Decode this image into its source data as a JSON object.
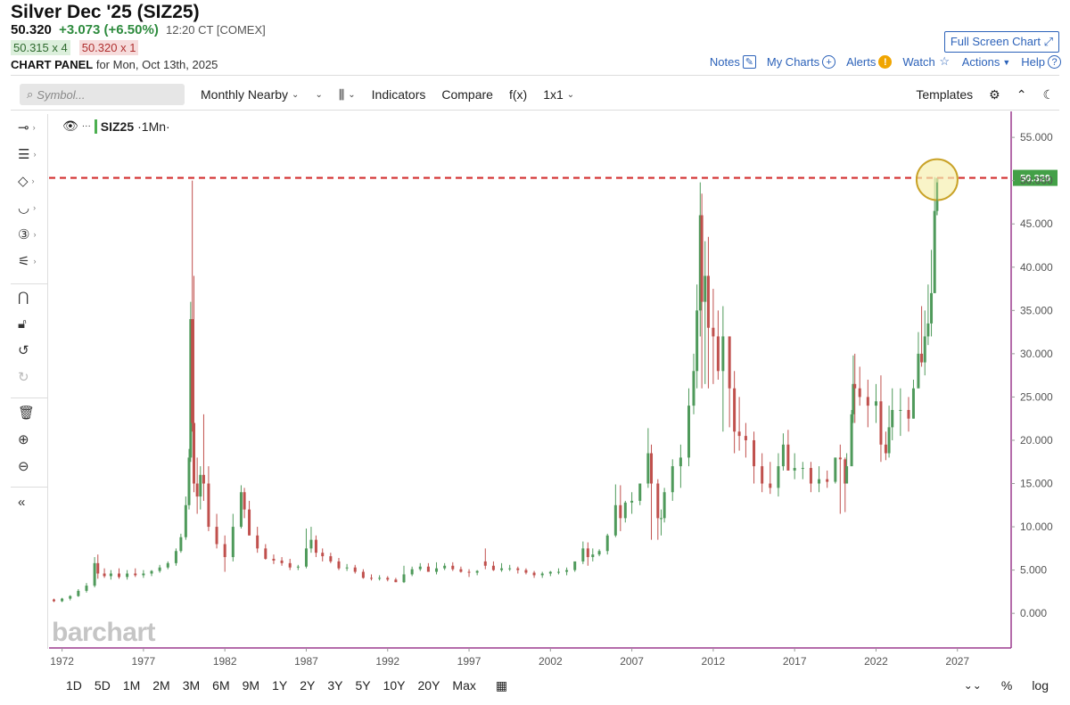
{
  "header": {
    "title": "Silver Dec '25 (SIZ25)",
    "last": "50.320",
    "change": "+3.073 (+6.50%)",
    "time": "12:20 CT [COMEX]",
    "bid": "50.315 x 4",
    "ask": "50.320 x 1",
    "panel_label": "CHART PANEL",
    "panel_date": "for Mon, Oct 13th, 2025"
  },
  "topnav": {
    "fullscreen": "Full Screen Chart",
    "notes": "Notes",
    "mycharts": "My Charts",
    "alerts": "Alerts",
    "watch": "Watch",
    "actions": "Actions",
    "help": "Help"
  },
  "toolbar": {
    "symbol_placeholder": "Symbol...",
    "period": "Monthly Nearby",
    "indicators": "Indicators",
    "compare": "Compare",
    "fx": "f(x)",
    "layout": "1x1",
    "templates": "Templates"
  },
  "legend": {
    "symbol": "SIZ25",
    "interval": "·1Mn·",
    "dots": "···"
  },
  "watermark": "barchart",
  "ranges": [
    "1D",
    "5D",
    "1M",
    "2M",
    "3M",
    "6M",
    "9M",
    "1Y",
    "2Y",
    "3Y",
    "5Y",
    "10Y",
    "20Y",
    "Max"
  ],
  "bottom_right": {
    "percent": "%",
    "log": "log"
  },
  "colors": {
    "up": "#4f9a5b",
    "down": "#c0504d",
    "price_line": "#d32f2f",
    "price_label_bg": "#43a047",
    "axis_border": "#9c3a8e",
    "highlight_circle_fill": "#f6efb0",
    "highlight_circle_stroke": "#c9a227"
  },
  "chart_data": {
    "type": "candlestick",
    "interval": "monthly",
    "last_price": 50.32,
    "last_price_label": "50.320",
    "y_ticks": [
      "55.000",
      "50.000",
      "45.000",
      "40.000",
      "35.000",
      "30.000",
      "25.000",
      "20.000",
      "15.000",
      "10.000",
      "5.000",
      "0.000"
    ],
    "y_tick_values": [
      55,
      50,
      45,
      40,
      35,
      30,
      25,
      20,
      15,
      10,
      5,
      0
    ],
    "ylim": [
      -4,
      58
    ],
    "x_ticks": [
      "1972",
      "1977",
      "1982",
      "1987",
      "1992",
      "1997",
      "2002",
      "2007",
      "2012",
      "2017",
      "2022",
      "2027"
    ],
    "x_tick_values": [
      1972,
      1977,
      1982,
      1987,
      1992,
      1997,
      2002,
      2007,
      2012,
      2017,
      2022,
      2027
    ],
    "xlim": [
      1971.2,
      2030.3
    ],
    "series": [
      {
        "x": [
          1971.5,
          1972.0,
          1972.5,
          1973.0,
          1973.5,
          1974.0,
          1974.2,
          1974.6,
          1975.0,
          1975.5,
          1976.0,
          1976.5,
          1977.0,
          1977.5,
          1978.0,
          1978.5,
          1979.0,
          1979.3,
          1979.6,
          1979.8,
          1979.9,
          1980.0,
          1980.1,
          1980.3,
          1980.5,
          1980.7,
          1981.0,
          1981.5,
          1982.0,
          1982.5,
          1983.0,
          1983.2,
          1983.5,
          1984.0,
          1984.5,
          1985.0,
          1985.5,
          1986.0,
          1986.5,
          1987.0,
          1987.3,
          1987.6,
          1988.0,
          1988.5,
          1989.0,
          1989.5,
          1990.0,
          1990.5,
          1991.0,
          1991.5,
          1992.0,
          1992.5,
          1993.0,
          1993.5,
          1994.0,
          1994.5,
          1995.0,
          1995.5,
          1996.0,
          1996.5,
          1997.0,
          1997.5,
          1998.0,
          1998.5,
          1999.0,
          1999.5,
          2000.0,
          2000.5,
          2001.0,
          2001.5,
          2002.0,
          2002.5,
          2003.0,
          2003.5,
          2004.0,
          2004.3,
          2004.6,
          2005.0,
          2005.5,
          2006.0,
          2006.3,
          2006.6,
          2007.0,
          2007.5,
          2008.0,
          2008.2,
          2008.6,
          2008.8,
          2009.0,
          2009.5,
          2010.0,
          2010.5,
          2010.8,
          2011.0,
          2011.2,
          2011.3,
          2011.5,
          2011.7,
          2012.0,
          2012.3,
          2012.6,
          2013.0,
          2013.3,
          2013.6,
          2014.0,
          2014.5,
          2015.0,
          2015.5,
          2016.0,
          2016.3,
          2016.6,
          2017.0,
          2017.5,
          2018.0,
          2018.5,
          2019.0,
          2019.5,
          2019.8,
          2020.1,
          2020.2,
          2020.5,
          2020.6,
          2020.7,
          2021.0,
          2021.5,
          2022.0,
          2022.3,
          2022.6,
          2022.8,
          2023.0,
          2023.5,
          2024.0,
          2024.3,
          2024.6,
          2024.8,
          2025.0,
          2025.2,
          2025.4,
          2025.6,
          2025.75
        ],
        "open": [
          1.6,
          1.4,
          1.7,
          2.0,
          2.6,
          3.2,
          5.8,
          4.6,
          4.3,
          4.6,
          4.2,
          4.6,
          4.4,
          4.6,
          4.9,
          5.3,
          5.8,
          7.2,
          8.8,
          12.5,
          18.0,
          34.0,
          22.0,
          15.0,
          13.5,
          16.0,
          15.0,
          10.0,
          8.0,
          6.5,
          10.0,
          14.0,
          12.0,
          9.0,
          7.5,
          6.3,
          6.1,
          5.8,
          5.3,
          5.4,
          7.5,
          8.5,
          7.0,
          6.6,
          6.0,
          5.2,
          5.3,
          4.8,
          4.1,
          4.0,
          4.1,
          3.9,
          3.6,
          4.5,
          5.1,
          5.4,
          4.8,
          5.2,
          5.5,
          5.1,
          4.8,
          4.7,
          6.0,
          5.5,
          5.0,
          5.2,
          5.2,
          5.0,
          4.7,
          4.4,
          4.6,
          4.8,
          4.8,
          5.0,
          6.0,
          7.5,
          6.5,
          6.8,
          7.2,
          9.0,
          12.5,
          11.0,
          12.8,
          13.0,
          15.0,
          18.5,
          15.0,
          11.0,
          11.0,
          14.0,
          17.0,
          18.0,
          24.0,
          28.0,
          35.0,
          46.0,
          36.0,
          39.0,
          33.0,
          32.0,
          28.0,
          32.0,
          26.0,
          21.0,
          20.5,
          20.0,
          17.0,
          15.0,
          14.5,
          17.0,
          19.5,
          16.5,
          16.8,
          16.8,
          15.0,
          15.5,
          15.2,
          18.0,
          17.8,
          15.0,
          17.0,
          23.0,
          26.5,
          26.0,
          25.0,
          24.0,
          24.5,
          19.5,
          18.5,
          21.5,
          23.5,
          23.5,
          22.5,
          26.0,
          30.0,
          29.0,
          32.0,
          33.5,
          37.0,
          46.5
        ],
        "high": [
          1.7,
          1.8,
          2.1,
          2.8,
          3.5,
          6.5,
          6.8,
          5.2,
          5.0,
          5.2,
          5.0,
          5.2,
          5.0,
          5.0,
          5.6,
          6.0,
          7.5,
          9.2,
          13.5,
          19.0,
          36.0,
          50.0,
          39.0,
          18.0,
          17.0,
          23.0,
          17.0,
          11.5,
          9.0,
          11.5,
          14.8,
          14.5,
          13.0,
          10.0,
          8.0,
          6.8,
          6.5,
          6.3,
          5.6,
          9.8,
          10.0,
          9.0,
          7.5,
          7.0,
          6.4,
          5.7,
          5.6,
          5.1,
          4.5,
          4.4,
          4.3,
          4.1,
          5.5,
          5.4,
          5.8,
          5.8,
          5.9,
          5.8,
          5.9,
          5.4,
          5.1,
          5.0,
          7.5,
          6.0,
          5.8,
          5.6,
          5.4,
          5.2,
          4.9,
          4.8,
          4.9,
          5.2,
          5.3,
          5.6,
          8.3,
          8.2,
          7.5,
          7.4,
          9.2,
          14.9,
          14.8,
          13.0,
          14.0,
          15.0,
          21.4,
          19.5,
          15.5,
          12.0,
          14.5,
          17.8,
          19.5,
          26.0,
          30.0,
          38.0,
          49.8,
          48.5,
          43.0,
          43.5,
          37.5,
          35.0,
          35.5,
          32.0,
          28.0,
          25.0,
          22.0,
          21.0,
          18.5,
          17.5,
          18.5,
          20.8,
          21.2,
          18.5,
          17.5,
          17.5,
          17.0,
          16.5,
          18.0,
          19.5,
          18.0,
          18.5,
          23.5,
          29.8,
          30.0,
          28.5,
          27.0,
          26.5,
          27.5,
          21.0,
          24.0,
          26.0,
          26.0,
          25.0,
          27.0,
          32.5,
          35.5,
          35.0,
          38.0,
          42.0,
          50.4,
          49.8
        ],
        "low": [
          1.3,
          1.3,
          1.5,
          1.9,
          2.4,
          3.0,
          4.0,
          4.1,
          3.9,
          4.0,
          3.9,
          4.2,
          4.1,
          4.3,
          4.7,
          5.1,
          5.5,
          7.0,
          8.5,
          12.0,
          17.5,
          21.0,
          14.0,
          11.5,
          12.0,
          13.0,
          9.5,
          7.5,
          4.8,
          6.0,
          9.8,
          11.0,
          9.0,
          7.0,
          6.2,
          5.7,
          5.5,
          5.0,
          5.0,
          5.2,
          7.0,
          6.5,
          6.0,
          5.8,
          5.0,
          4.9,
          4.6,
          4.0,
          3.8,
          3.8,
          3.7,
          3.6,
          3.5,
          4.3,
          4.9,
          4.9,
          4.5,
          5.0,
          4.9,
          4.7,
          4.2,
          4.4,
          5.1,
          4.9,
          4.8,
          4.9,
          4.6,
          4.5,
          4.1,
          4.1,
          4.3,
          4.5,
          4.4,
          4.8,
          5.7,
          5.5,
          6.0,
          6.6,
          6.8,
          8.8,
          9.5,
          10.5,
          11.5,
          12.5,
          14.5,
          8.5,
          8.5,
          9.0,
          10.5,
          13.0,
          14.5,
          17.0,
          23.0,
          26.0,
          32.0,
          26.0,
          26.5,
          26.0,
          26.5,
          27.0,
          21.0,
          21.5,
          18.5,
          18.8,
          18.0,
          15.0,
          14.0,
          13.8,
          13.5,
          16.5,
          16.5,
          15.5,
          15.5,
          14.0,
          14.0,
          14.5,
          15.0,
          11.5,
          11.7,
          15.0,
          17.0,
          22.0,
          22.0,
          24.0,
          21.5,
          22.0,
          17.5,
          17.7,
          18.0,
          20.0,
          20.5,
          21.0,
          22.5,
          26.0,
          28.5,
          27.5,
          31.0,
          32.0,
          37.0,
          46.0
        ],
        "close": [
          1.4,
          1.7,
          2.0,
          2.6,
          3.2,
          5.8,
          4.6,
          4.3,
          4.6,
          4.2,
          4.6,
          4.4,
          4.6,
          4.9,
          5.3,
          5.8,
          7.2,
          8.8,
          12.5,
          18.0,
          34.0,
          22.0,
          15.0,
          13.5,
          16.0,
          15.0,
          10.0,
          8.0,
          6.5,
          10.0,
          14.0,
          12.0,
          9.0,
          7.5,
          6.3,
          6.1,
          5.8,
          5.3,
          5.4,
          7.5,
          8.5,
          7.0,
          6.6,
          6.0,
          5.2,
          5.3,
          4.8,
          4.1,
          4.0,
          4.1,
          3.9,
          3.6,
          4.5,
          5.1,
          5.4,
          4.8,
          5.2,
          5.5,
          5.1,
          4.8,
          4.7,
          4.9,
          5.5,
          5.0,
          5.2,
          5.2,
          5.0,
          4.7,
          4.4,
          4.6,
          4.8,
          4.8,
          5.0,
          6.0,
          7.5,
          6.5,
          6.8,
          7.2,
          9.0,
          12.5,
          11.0,
          12.8,
          13.0,
          15.0,
          18.5,
          15.0,
          11.0,
          11.0,
          14.0,
          17.0,
          18.0,
          24.0,
          28.0,
          35.0,
          46.0,
          36.0,
          39.0,
          33.0,
          32.0,
          28.0,
          32.0,
          26.0,
          21.0,
          20.5,
          20.0,
          17.0,
          15.0,
          14.5,
          17.0,
          19.5,
          16.5,
          16.8,
          16.8,
          15.0,
          15.5,
          15.2,
          18.0,
          17.8,
          15.0,
          17.0,
          23.0,
          26.5,
          26.0,
          25.0,
          24.0,
          24.5,
          19.5,
          18.5,
          21.5,
          23.5,
          23.5,
          22.5,
          26.0,
          30.0,
          29.0,
          32.0,
          33.5,
          37.0,
          46.5,
          50.32
        ]
      }
    ]
  }
}
